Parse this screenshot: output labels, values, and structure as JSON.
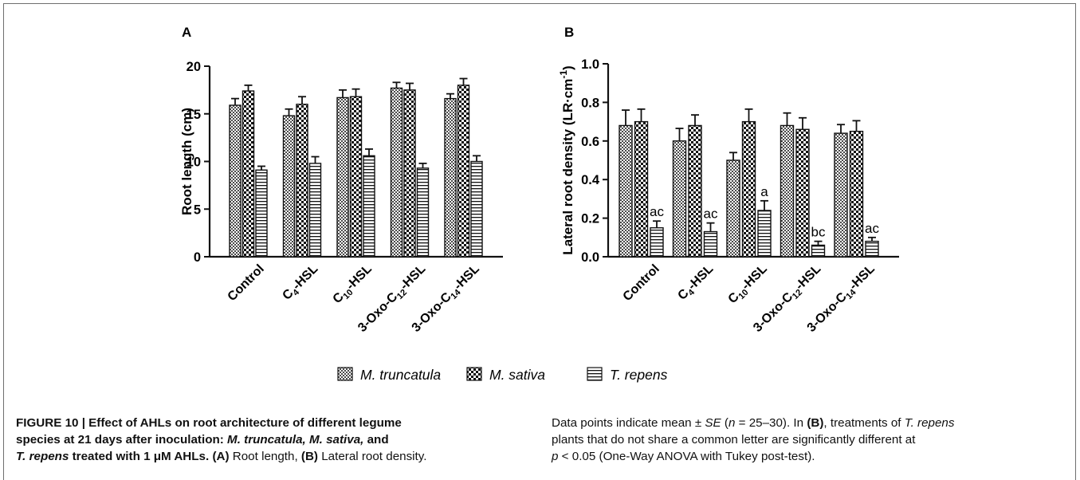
{
  "colors": {
    "ink": "#111111",
    "frame": "#6f6f6f",
    "background": "#ffffff"
  },
  "legend": [
    {
      "label": "M. truncatula",
      "pattern": "fine-check"
    },
    {
      "label": "M. sativa",
      "pattern": "coarse-check"
    },
    {
      "label": "T. repens",
      "pattern": "horizontal-lines"
    }
  ],
  "chart_data": [
    {
      "panel": "A",
      "type": "bar",
      "ylabel": "Root length (cm)",
      "ylim": [
        0,
        20
      ],
      "yticks": [
        "0",
        "5",
        "10",
        "15",
        "20"
      ],
      "categories": [
        "Control",
        "C4-HSL",
        "C10-HSL",
        "3-Oxo-C12-HSL",
        "3-Oxo-C14-HSL"
      ],
      "series": [
        {
          "name": "M. truncatula",
          "values": [
            15.9,
            14.8,
            16.7,
            17.7,
            16.6
          ],
          "errors": [
            0.7,
            0.7,
            0.8,
            0.6,
            0.5
          ]
        },
        {
          "name": "M. sativa",
          "values": [
            17.4,
            16.0,
            16.8,
            17.5,
            18.0
          ],
          "errors": [
            0.6,
            0.8,
            0.8,
            0.7,
            0.7
          ]
        },
        {
          "name": "T. repens",
          "values": [
            9.1,
            9.8,
            10.6,
            9.3,
            10.0
          ],
          "errors": [
            0.4,
            0.7,
            0.7,
            0.5,
            0.6
          ]
        }
      ],
      "significance_letters": []
    },
    {
      "panel": "B",
      "type": "bar",
      "ylabel": "Lateral root density (LR·cm",
      "ylabel_sup": "-1",
      "ylabel_end": ")",
      "ylim": [
        0,
        1.0
      ],
      "yticks": [
        "0.0",
        "0.2",
        "0.4",
        "0.6",
        "0.8",
        "1.0"
      ],
      "categories": [
        "Control",
        "C4-HSL",
        "C10-HSL",
        "3-Oxo-C12-HSL",
        "3-Oxo-C14-HSL"
      ],
      "series": [
        {
          "name": "M. truncatula",
          "values": [
            0.68,
            0.6,
            0.5,
            0.68,
            0.64
          ],
          "errors": [
            0.08,
            0.065,
            0.04,
            0.065,
            0.045
          ]
        },
        {
          "name": "M. sativa",
          "values": [
            0.7,
            0.68,
            0.7,
            0.66,
            0.65
          ],
          "errors": [
            0.065,
            0.055,
            0.065,
            0.06,
            0.055
          ]
        },
        {
          "name": "T. repens",
          "values": [
            0.15,
            0.13,
            0.24,
            0.06,
            0.08
          ],
          "errors": [
            0.035,
            0.045,
            0.05,
            0.02,
            0.02
          ]
        }
      ],
      "significance_letters": [
        "ac",
        "ac",
        "a",
        "bc",
        "ac"
      ]
    }
  ],
  "caption": {
    "left": [
      {
        "text": "FIGURE 10 | Effect of AHLs on root architecture of different legume",
        "bold": true
      },
      {
        "text": "species at 21 days after inoculation: ",
        "bold": true,
        "rest_bi": "M. truncatula, M. sativa,",
        "rest_b": " and"
      },
      {
        "bi": "T. repens",
        "b": " treated with 1 μM AHLs. ",
        "b2": "(A)",
        "plain": " Root length, ",
        "b3": "(B)",
        "plain2": " Lateral root density."
      }
    ],
    "right": {
      "line1_a": "Data points indicate mean ± ",
      "line1_i1": "SE",
      "line1_b": " (",
      "line1_i2": "n",
      "line1_c": " = 25–30). In ",
      "line1_bold": "(B)",
      "line1_d": ", treatments of ",
      "line1_i3": "T. repens",
      "line2": "plants that do not share a common letter are significantly different at",
      "line3_i": "p",
      "line3": " < 0.05 (One-Way ANOVA with Tukey post-test)."
    }
  }
}
